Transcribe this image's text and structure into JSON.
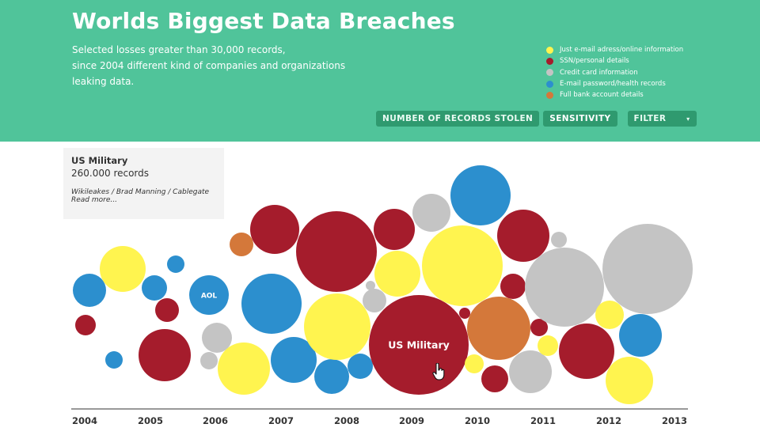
{
  "header": {
    "title": "Worlds Biggest Data Breaches",
    "subtitle_lines": [
      "Selected losses greater than 30,000 records,",
      "since 2004 different kind of companies and organizations",
      "leaking data."
    ]
  },
  "legend": [
    {
      "label": "Just e-mail adress/online information",
      "color": "#fff44f"
    },
    {
      "label": "SSN/personal details",
      "color": "#a51c2c"
    },
    {
      "label": "Credit card information",
      "color": "#c4c4c4"
    },
    {
      "label": "E-mail password/health records",
      "color": "#2c8fce"
    },
    {
      "label": "Full bank account details",
      "color": "#d4783a"
    }
  ],
  "controls": {
    "records_label": "NUMBER OF RECORDS STOLEN",
    "sensitivity_label": "SENSITIVITY",
    "filter_label": "FILTER",
    "filter_caret": "▾"
  },
  "tooltip": {
    "name": "US Military",
    "records": "260.000 records",
    "story": "Wikileakes / Brad Manning / Cablegate",
    "more": "Read more..."
  },
  "chart_data": {
    "type": "bubble",
    "x_axis": {
      "labels": [
        "2004",
        "2005",
        "2006",
        "2007",
        "2008",
        "2009",
        "2010",
        "2011",
        "2012",
        "2013"
      ]
    },
    "bubble_labels": {
      "aol": "AOL",
      "us_military": "US Military"
    },
    "colors": {
      "yellow": "#fff44f",
      "red": "#a51c2c",
      "grey": "#c4c4c4",
      "blue": "#2c8fce",
      "orange": "#d4783a"
    }
  }
}
